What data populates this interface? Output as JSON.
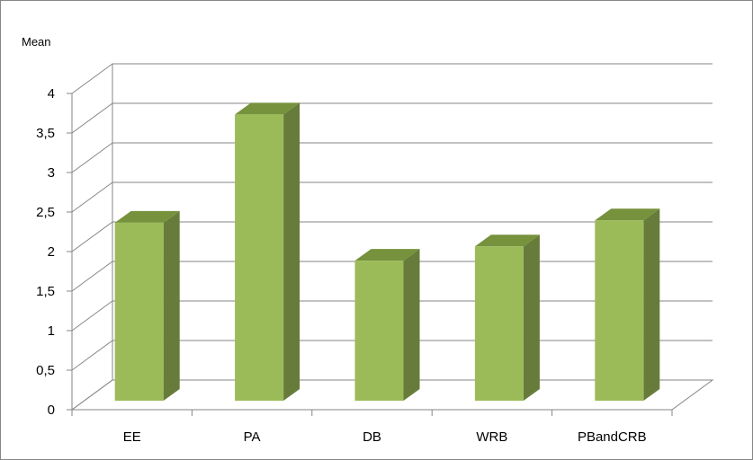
{
  "chart_data": {
    "type": "bar",
    "style": "3d-column",
    "title": "",
    "xlabel": "",
    "ylabel": "Mean",
    "categories": [
      "EE",
      "PA",
      "DB",
      "WRB",
      "PBandCRB"
    ],
    "values": [
      2.2,
      3.57,
      1.72,
      1.9,
      2.23
    ],
    "ylim": [
      0,
      4
    ],
    "yticks": [
      "0",
      "0,5",
      "1",
      "1,5",
      "2",
      "2,5",
      "3",
      "3,5",
      "4"
    ],
    "grid": true,
    "legend": "none",
    "colors": {
      "bar_front": "#9bbb59",
      "bar_side": "#677c3a",
      "bar_top": "#76923c",
      "gridline": "#868686"
    }
  }
}
